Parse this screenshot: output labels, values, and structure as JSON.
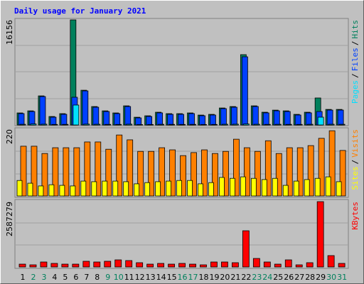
{
  "chart_data": [
    {
      "type": "bar",
      "title": "Daily usage for January 2021",
      "series": [
        {
          "name": "Pages",
          "color": "#00E0FF",
          "values": [
            100,
            150,
            120,
            80,
            90,
            3060,
            130,
            110,
            90,
            80,
            120,
            60,
            70,
            100,
            90,
            80,
            90,
            70,
            80,
            110,
            120,
            150,
            110,
            90,
            100,
            90,
            80,
            100,
            1200,
            110,
            100
          ]
        },
        {
          "name": "Files",
          "color": "#0040FF",
          "values": [
            1750,
            2070,
            4370,
            1200,
            1640,
            4260,
            5240,
            2730,
            2070,
            1750,
            2840,
            1090,
            1310,
            1860,
            1640,
            1640,
            1750,
            1420,
            1530,
            2510,
            2730,
            10480,
            2840,
            1860,
            2180,
            2070,
            1530,
            1860,
            2070,
            2290,
            2290
          ]
        },
        {
          "name": "Hits",
          "color": "#00805C",
          "values": [
            1850,
            2170,
            4470,
            1300,
            1740,
            16156,
            5340,
            2830,
            2170,
            1850,
            2940,
            1190,
            1410,
            1960,
            1740,
            1740,
            1850,
            1520,
            1630,
            2610,
            2830,
            10810,
            2940,
            1960,
            2280,
            2170,
            1630,
            1960,
            4150,
            2390,
            2390
          ]
        }
      ],
      "legend_separator": "/",
      "ylim": [
        0,
        16156
      ],
      "yticks": [
        16156
      ]
    },
    {
      "type": "bar",
      "series": [
        {
          "name": "Sites",
          "color": "#FFFF00",
          "values": [
            51,
            42,
            33,
            37,
            35,
            33,
            49,
            47,
            49,
            49,
            47,
            40,
            44,
            47,
            49,
            51,
            51,
            40,
            44,
            61,
            58,
            63,
            58,
            54,
            58,
            35,
            49,
            54,
            58,
            63,
            47
          ]
        },
        {
          "name": "Visits",
          "color": "#FF8000",
          "values": [
            164,
            164,
            140,
            159,
            159,
            159,
            178,
            178,
            154,
            201,
            185,
            147,
            147,
            159,
            152,
            133,
            143,
            152,
            140,
            147,
            187,
            159,
            147,
            182,
            140,
            159,
            159,
            166,
            190,
            215,
            150
          ]
        }
      ],
      "legend_separator": "/",
      "ylim": [
        0,
        220
      ],
      "yticks": [
        220
      ]
    },
    {
      "type": "bar",
      "categories": [
        "1",
        "2",
        "3",
        "4",
        "5",
        "6",
        "7",
        "8",
        "9",
        "10",
        "11",
        "12",
        "13",
        "14",
        "15",
        "16",
        "17",
        "18",
        "19",
        "20",
        "21",
        "22",
        "23",
        "24",
        "25",
        "26",
        "27",
        "28",
        "29",
        "30",
        "31"
      ],
      "category_colors": [
        "#000000",
        "#00805C",
        "#00805C",
        "#000000",
        "#000000",
        "#000000",
        "#000000",
        "#000000",
        "#00805C",
        "#00805C",
        "#000000",
        "#000000",
        "#000000",
        "#000000",
        "#000000",
        "#00805C",
        "#00805C",
        "#000000",
        "#000000",
        "#000000",
        "#000000",
        "#000000",
        "#00805C",
        "#00805C",
        "#000000",
        "#000000",
        "#000000",
        "#000000",
        "#000000",
        "#00805C",
        "#00805C"
      ],
      "series": [
        {
          "name": "KBytes",
          "color": "#FF0000",
          "values": [
            112000,
            84000,
            197000,
            141000,
            112000,
            112000,
            225000,
            197000,
            225000,
            281000,
            253000,
            169000,
            112000,
            141000,
            112000,
            141000,
            112000,
            84000,
            197000,
            197000,
            169000,
            1434000,
            337000,
            197000,
            112000,
            281000,
            84000,
            169000,
            2587279,
            450000,
            141000
          ]
        }
      ],
      "ylim": [
        0,
        2587279
      ],
      "yticks": [
        2587279
      ]
    }
  ]
}
